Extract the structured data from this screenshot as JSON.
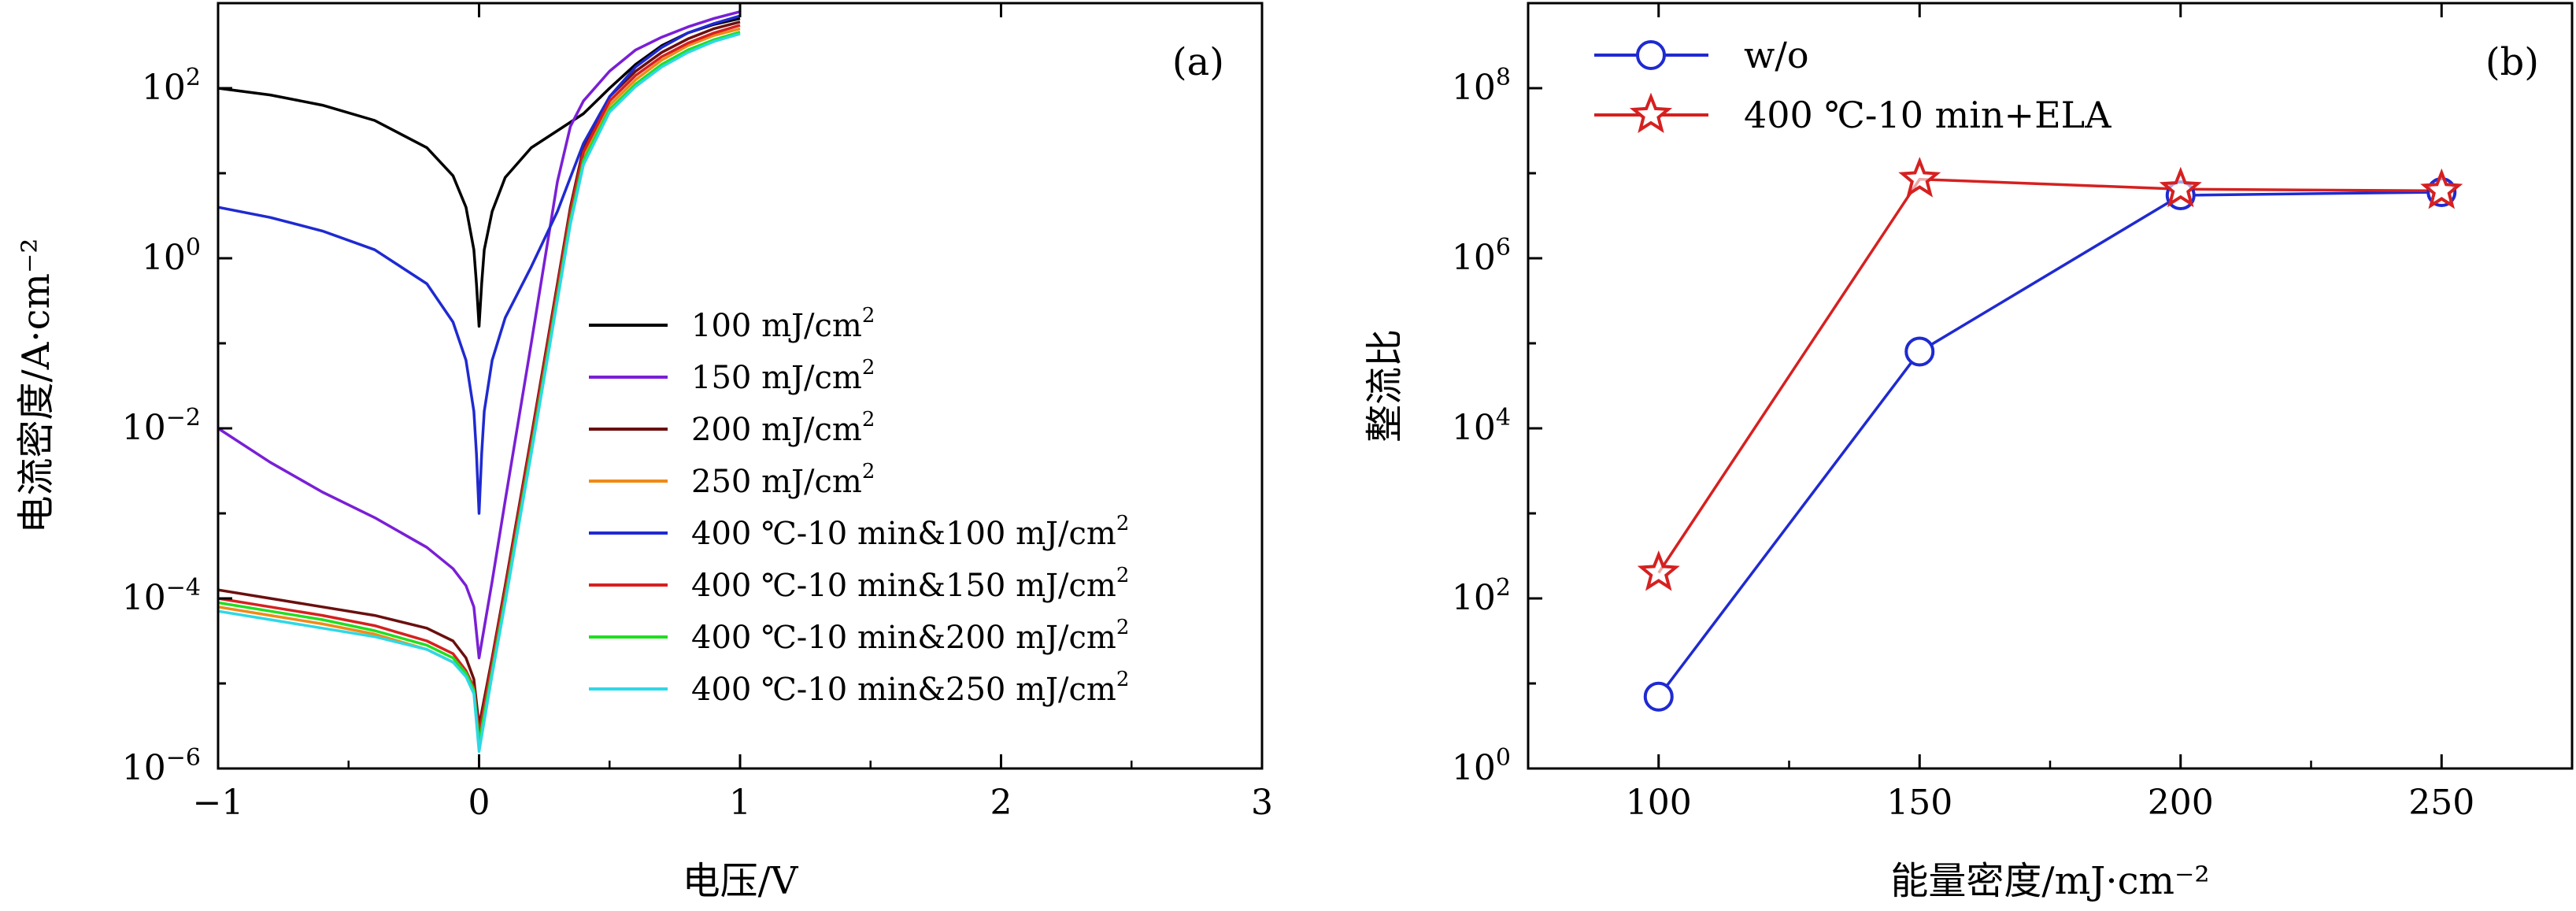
{
  "chart_data": [
    {
      "panel": "(a)",
      "type": "line",
      "yscale": "log",
      "xlabel": "电压/V",
      "ylabel": "电流密度/A·cm⁻²",
      "xlim": [
        -1,
        3
      ],
      "ylim_exp": [
        -6,
        3
      ],
      "xticks": [
        "−1",
        "0",
        "1",
        "2",
        "3"
      ],
      "yticks": [
        {
          "base": "10",
          "exp": "−6",
          "e": -6
        },
        {
          "base": "10",
          "exp": "−4",
          "e": -4
        },
        {
          "base": "10",
          "exp": "−2",
          "e": -2
        },
        {
          "base": "10",
          "exp": "0",
          "e": 0
        },
        {
          "base": "10",
          "exp": "2",
          "e": 2
        }
      ],
      "legend_position": "lower-right",
      "series": [
        {
          "name": "100 mJ/cm",
          "sup": "2",
          "color": "#000000",
          "x": [
            -1,
            -0.8,
            -0.6,
            -0.4,
            -0.2,
            -0.1,
            -0.05,
            -0.02,
            -0.01,
            0,
            0.01,
            0.02,
            0.05,
            0.1,
            0.2,
            0.3,
            0.4,
            0.5,
            0.6,
            0.7,
            0.8,
            0.9,
            1.0
          ],
          "logy": [
            2.0,
            1.92,
            1.8,
            1.62,
            1.3,
            0.97,
            0.6,
            0.1,
            -0.3,
            -0.8,
            -0.3,
            0.1,
            0.55,
            0.95,
            1.3,
            1.5,
            1.7,
            2.0,
            2.28,
            2.5,
            2.65,
            2.75,
            2.82
          ]
        },
        {
          "name": "150 mJ/cm",
          "sup": "2",
          "color": "#7a1fd6",
          "x": [
            -1,
            -0.8,
            -0.6,
            -0.4,
            -0.2,
            -0.1,
            -0.05,
            -0.02,
            0,
            0.05,
            0.1,
            0.2,
            0.3,
            0.35,
            0.4,
            0.5,
            0.6,
            0.7,
            0.8,
            0.9,
            1.0
          ],
          "logy": [
            -2.0,
            -2.4,
            -2.75,
            -3.05,
            -3.4,
            -3.65,
            -3.85,
            -4.1,
            -4.7,
            -3.8,
            -2.85,
            -1.0,
            0.9,
            1.55,
            1.85,
            2.2,
            2.45,
            2.6,
            2.72,
            2.82,
            2.9
          ]
        },
        {
          "name": "200 mJ/cm",
          "sup": "2",
          "color": "#6b0f0f",
          "x": [
            -1,
            -0.8,
            -0.6,
            -0.4,
            -0.2,
            -0.1,
            -0.05,
            -0.02,
            0,
            0.05,
            0.1,
            0.2,
            0.3,
            0.35,
            0.4,
            0.5,
            0.6,
            0.7,
            0.8,
            0.9,
            1.0
          ],
          "logy": [
            -3.9,
            -4.0,
            -4.1,
            -4.2,
            -4.35,
            -4.5,
            -4.7,
            -4.95,
            -5.5,
            -4.7,
            -3.85,
            -2.1,
            -0.3,
            0.6,
            1.3,
            1.9,
            2.2,
            2.42,
            2.58,
            2.7,
            2.78
          ]
        },
        {
          "name": "250 mJ/cm",
          "sup": "2",
          "color": "#ef8a17",
          "x": [
            -1,
            -0.8,
            -0.6,
            -0.4,
            -0.2,
            -0.1,
            -0.05,
            -0.02,
            0,
            0.05,
            0.1,
            0.2,
            0.3,
            0.35,
            0.4,
            0.5,
            0.6,
            0.7,
            0.8,
            0.9,
            1.0
          ],
          "logy": [
            -4.1,
            -4.2,
            -4.3,
            -4.42,
            -4.6,
            -4.75,
            -4.9,
            -5.1,
            -5.6,
            -4.8,
            -3.95,
            -2.2,
            -0.4,
            0.5,
            1.2,
            1.8,
            2.1,
            2.33,
            2.5,
            2.62,
            2.7
          ]
        },
        {
          "name": "400 ℃-10 min&100 mJ/cm",
          "sup": "2",
          "color": "#1f2ad1",
          "x": [
            -1,
            -0.8,
            -0.6,
            -0.4,
            -0.2,
            -0.1,
            -0.05,
            -0.02,
            -0.01,
            0,
            0.01,
            0.02,
            0.05,
            0.1,
            0.2,
            0.3,
            0.35,
            0.4,
            0.5,
            0.6,
            0.7,
            0.8,
            0.9,
            1.0
          ],
          "logy": [
            0.6,
            0.48,
            0.32,
            0.1,
            -0.3,
            -0.75,
            -1.2,
            -1.8,
            -2.3,
            -3.0,
            -2.3,
            -1.8,
            -1.2,
            -0.7,
            -0.1,
            0.55,
            0.95,
            1.35,
            1.9,
            2.25,
            2.48,
            2.65,
            2.76,
            2.85
          ]
        },
        {
          "name": "400 ℃-10 min&150 mJ/cm",
          "sup": "2",
          "color": "#d62020",
          "x": [
            -1,
            -0.8,
            -0.6,
            -0.4,
            -0.2,
            -0.1,
            -0.05,
            -0.02,
            0,
            0.05,
            0.1,
            0.2,
            0.3,
            0.35,
            0.4,
            0.5,
            0.6,
            0.7,
            0.8,
            0.9,
            1.0
          ],
          "logy": [
            -4.0,
            -4.1,
            -4.2,
            -4.32,
            -4.5,
            -4.65,
            -4.85,
            -5.05,
            -5.6,
            -4.75,
            -3.9,
            -2.15,
            -0.35,
            0.55,
            1.25,
            1.85,
            2.15,
            2.37,
            2.53,
            2.65,
            2.74
          ]
        },
        {
          "name": "400 ℃-10 min&200 mJ/cm",
          "sup": "2",
          "color": "#22dd22",
          "x": [
            -1,
            -0.8,
            -0.6,
            -0.4,
            -0.2,
            -0.1,
            -0.05,
            -0.02,
            0,
            0.05,
            0.1,
            0.2,
            0.3,
            0.35,
            0.4,
            0.5,
            0.6,
            0.7,
            0.8,
            0.9,
            1.0
          ],
          "logy": [
            -4.05,
            -4.15,
            -4.25,
            -4.38,
            -4.55,
            -4.7,
            -4.88,
            -5.08,
            -5.7,
            -4.85,
            -4.0,
            -2.25,
            -0.45,
            0.45,
            1.15,
            1.75,
            2.05,
            2.28,
            2.45,
            2.57,
            2.66
          ]
        },
        {
          "name": "400 ℃-10 min&250 mJ/cm",
          "sup": "2",
          "color": "#2ed8e6",
          "x": [
            -1,
            -0.8,
            -0.6,
            -0.4,
            -0.2,
            -0.1,
            -0.05,
            -0.02,
            0,
            0.05,
            0.1,
            0.2,
            0.3,
            0.35,
            0.4,
            0.5,
            0.6,
            0.7,
            0.8,
            0.9,
            1.0
          ],
          "logy": [
            -4.15,
            -4.25,
            -4.35,
            -4.45,
            -4.6,
            -4.75,
            -4.92,
            -5.12,
            -5.8,
            -4.9,
            -4.05,
            -2.3,
            -0.5,
            0.4,
            1.1,
            1.72,
            2.02,
            2.25,
            2.42,
            2.55,
            2.64
          ]
        }
      ]
    },
    {
      "panel": "(b)",
      "type": "line",
      "yscale": "log",
      "xlabel": "能量密度/mJ·cm⁻²",
      "ylabel": "整流比",
      "xlim": [
        75,
        275
      ],
      "ylim_exp": [
        0,
        9
      ],
      "xticks": [
        "100",
        "150",
        "200",
        "250"
      ],
      "xtick_values": [
        100,
        150,
        200,
        250
      ],
      "yticks": [
        {
          "base": "10",
          "exp": "0",
          "e": 0
        },
        {
          "base": "10",
          "exp": "2",
          "e": 2
        },
        {
          "base": "10",
          "exp": "4",
          "e": 4
        },
        {
          "base": "10",
          "exp": "6",
          "e": 6
        },
        {
          "base": "10",
          "exp": "8",
          "e": 8
        }
      ],
      "legend_position": "top-left",
      "series": [
        {
          "name": "w/o",
          "marker": "circle",
          "color": "#1f2ad1",
          "x": [
            100,
            150,
            200,
            250
          ],
          "y": [
            7,
            80000,
            5500000,
            6000000
          ]
        },
        {
          "name": "400 ℃-10 min+ELA",
          "marker": "star",
          "color": "#d62020",
          "x": [
            100,
            150,
            200,
            250
          ],
          "y": [
            200,
            8500000,
            6500000,
            6200000
          ]
        }
      ]
    }
  ]
}
